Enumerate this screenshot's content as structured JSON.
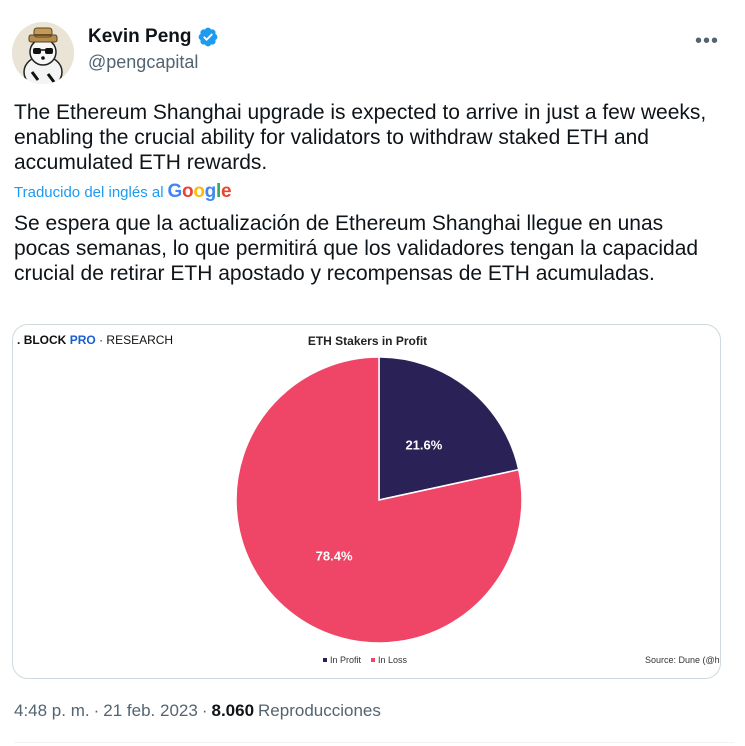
{
  "author": {
    "display_name": "Kevin Peng",
    "handle": "@pengcapital",
    "verified": true,
    "avatar_icon": "panda-avatar-icon"
  },
  "more_label": "•••",
  "tweet": {
    "text": "The Ethereum Shanghai upgrade is expected to arrive in just a few weeks, enabling the crucial ability for validators to withdraw staked ETH and accumulated ETH rewards.",
    "translated_label": "Traducido del inglés al",
    "translation": "Se espera que la actualización de Ethereum Shanghai llegue en unas pocas semanas, lo que permitirá que los validadores tengan la capacidad crucial de retirar ETH apostado y recompensas de ETH acumuladas."
  },
  "media": {
    "brand_block": "BLOCK",
    "brand_pro": "PRO",
    "brand_research": "RESEARCH",
    "source": "Source: Dune (@hi"
  },
  "chart_data": {
    "type": "pie",
    "title": "ETH Stakers in Profit",
    "slices": [
      {
        "name": "In Profit",
        "value": 21.6,
        "label": "21.6%",
        "color": "#2a2157"
      },
      {
        "name": "In Loss",
        "value": 78.4,
        "label": "78.4%",
        "color": "#ef4566"
      }
    ],
    "legend": "bottom"
  },
  "footer": {
    "time": "4:48 p. m.",
    "sep1": "·",
    "date": "21 feb. 2023",
    "sep2": "·",
    "views_count": "8.060",
    "views_label": "Reproducciones"
  },
  "colors": {
    "accent": "#1d9bf0",
    "secondary_text": "#536471"
  }
}
